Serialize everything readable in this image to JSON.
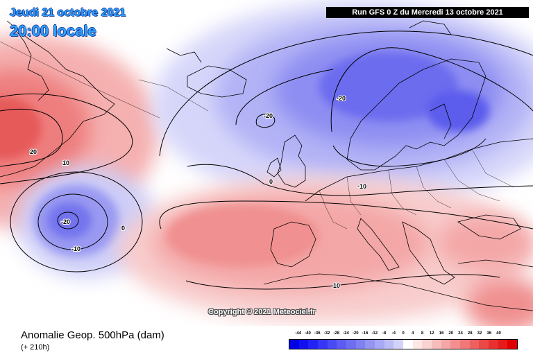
{
  "header": {
    "date_label": "Jeudi 21 octobre 2021",
    "time_label": "20:00 locale",
    "run_label": "Run GFS 0 Z du Mercredi 13 octobre 2021"
  },
  "map": {
    "copyright": "Copyright © 2021 Meteociel.fr",
    "contour_labels": [
      "20",
      "10",
      "0",
      "-20",
      "-10",
      "0",
      "-20",
      "-20",
      "-10",
      "10",
      "0"
    ]
  },
  "footer": {
    "variable_title": "Anomalie Geop. 500hPa (dam)",
    "lead_time": "(+ 210h)"
  },
  "legend": {
    "ticks": [
      "-44",
      "-40",
      "-36",
      "-32",
      "-28",
      "-24",
      "-20",
      "-16",
      "-12",
      "-8",
      "-4",
      "0",
      "4",
      "8",
      "12",
      "16",
      "20",
      "24",
      "28",
      "32",
      "36",
      "40"
    ],
    "colors": [
      "#0000e6",
      "#1010f0",
      "#2222f5",
      "#3636f5",
      "#4a4af5",
      "#5c5cf5",
      "#6e6ef2",
      "#8080f0",
      "#9494f2",
      "#a8a8f5",
      "#bcbcf7",
      "#d2d2fa",
      "#ffffff",
      "#fce6e6",
      "#fad2d2",
      "#f7bcbc",
      "#f5a6a6",
      "#f28f8f",
      "#f07878",
      "#ed6060",
      "#eb4848",
      "#e83030",
      "#e51a1a",
      "#e00000"
    ]
  }
}
